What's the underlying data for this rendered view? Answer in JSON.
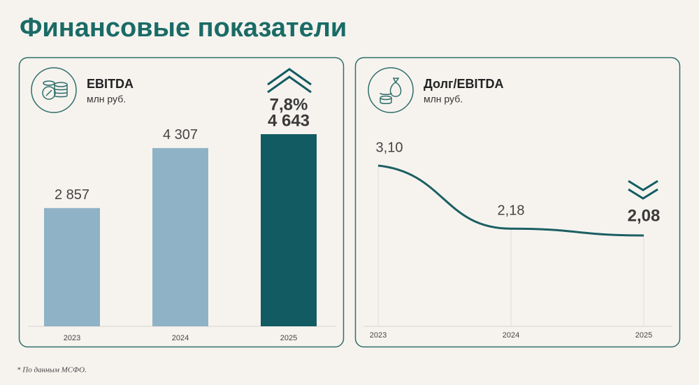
{
  "title": "Финансовые показатели",
  "footnote": "* По данным МСФО.",
  "chart_data": [
    {
      "type": "bar",
      "title": "EBITDA",
      "subtitle": "млн руб.",
      "categories": [
        "2023",
        "2024",
        "2025"
      ],
      "values": [
        2857,
        4307,
        4643
      ],
      "value_labels": [
        "2 857",
        "4 307",
        "4 643"
      ],
      "colors": [
        "#8fb2c6",
        "#8fb2c6",
        "#135b62"
      ],
      "annotation": "7,8%"
    },
    {
      "type": "line",
      "title": "Долг/EBITDA",
      "subtitle": "млн руб.",
      "categories": [
        "2023",
        "2024",
        "2025"
      ],
      "values": [
        3.1,
        2.18,
        2.08
      ],
      "value_labels": [
        "3,10",
        "2,18",
        "2,08"
      ],
      "color": "#1c5f62"
    }
  ]
}
